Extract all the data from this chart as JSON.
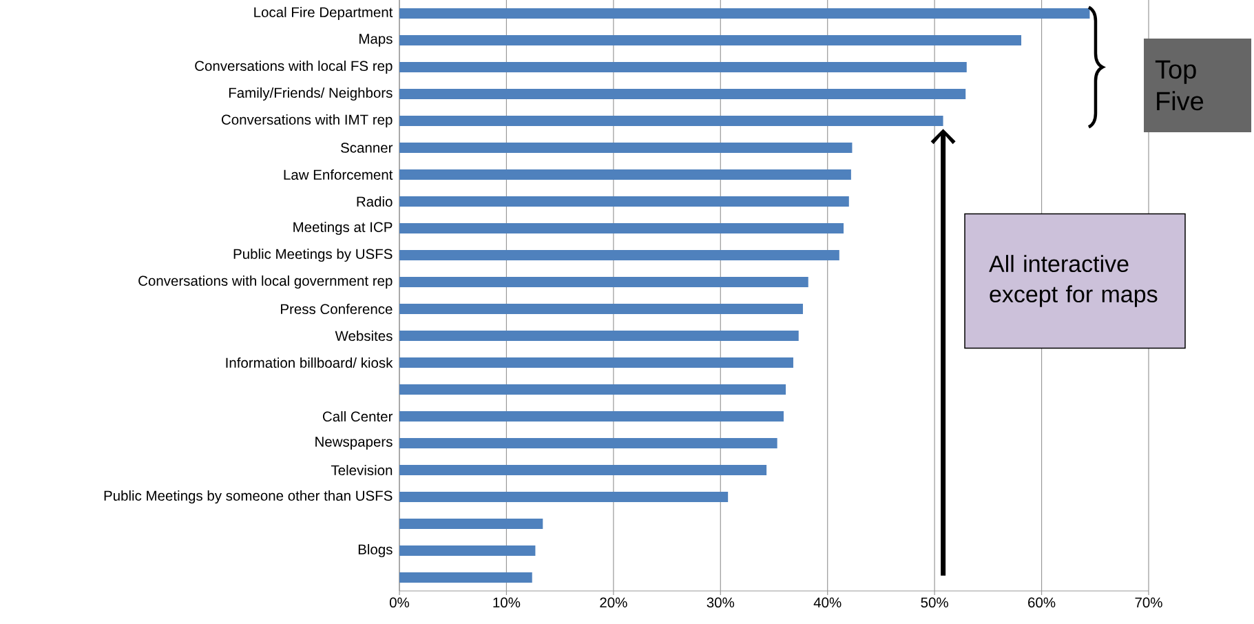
{
  "chart_data": {
    "type": "bar",
    "orientation": "horizontal",
    "categories": [
      "Local Fire Department",
      "Maps",
      "Conversations with local FS rep",
      "Family/Friends/ Neighbors",
      "Conversations with IMT rep",
      "Scanner",
      "Law Enforcement",
      "Radio",
      "Meetings at ICP",
      "Public Meetings by USFS",
      "Conversations with local government rep",
      "Press Conference",
      "Websites",
      "Information billboard/ kiosk",
      null,
      "Call Center",
      "Newspapers",
      "Television",
      "Public Meetings by someone other than USFS",
      null,
      "Blogs",
      null
    ],
    "values": [
      64.5,
      58.1,
      53.0,
      52.9,
      50.8,
      42.3,
      42.2,
      42.0,
      41.5,
      41.1,
      38.2,
      37.7,
      37.3,
      36.8,
      36.1,
      35.9,
      35.3,
      34.3,
      30.7,
      13.4,
      12.7,
      12.4
    ],
    "color": "#4f81bd",
    "xlim": [
      0,
      70
    ],
    "xticks": [
      {
        "value": 0,
        "label": "0%"
      },
      {
        "value": 10,
        "label": "10%"
      },
      {
        "value": 20,
        "label": "20%"
      },
      {
        "value": 30,
        "label": "30%"
      },
      {
        "value": 40,
        "label": "40%"
      },
      {
        "value": 50,
        "label": "50%"
      },
      {
        "value": 60,
        "label": "60%"
      },
      {
        "value": 70,
        "label": "70%"
      }
    ],
    "grid": "x",
    "annotations": [
      "Top Five",
      "All interactive except for maps"
    ]
  }
}
